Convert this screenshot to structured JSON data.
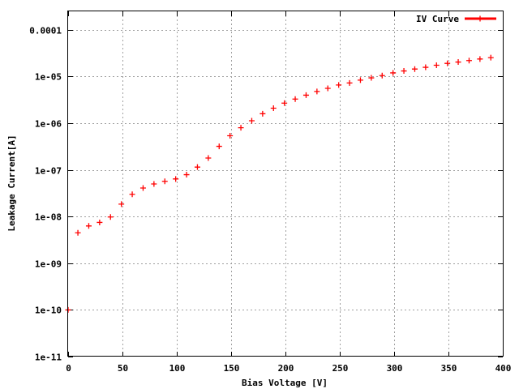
{
  "colors": {
    "series": "#ff0000",
    "axis": "#000000",
    "grid": "#a0a0a0"
  },
  "chart_data": {
    "type": "scatter",
    "title": "",
    "xlabel": "Bias Voltage [V]",
    "ylabel": "Leakage Current[A]",
    "xlim": [
      0,
      400
    ],
    "ylim": [
      1e-11,
      0.00025
    ],
    "y_scale": "log",
    "grid": true,
    "legend_position": "top-right",
    "x_ticks": [
      0,
      50,
      100,
      150,
      200,
      250,
      300,
      350,
      400
    ],
    "x_tick_labels": [
      "0",
      "50",
      "100",
      "150",
      "200",
      "250",
      "300",
      "350",
      "400"
    ],
    "y_ticks": [
      1e-11,
      1e-10,
      1e-09,
      1e-08,
      1e-07,
      1e-06,
      1e-05,
      0.0001
    ],
    "y_tick_labels": [
      "1e-11",
      "1e-10",
      "1e-09",
      "1e-08",
      "1e-07",
      "1e-06",
      "1e-05",
      "0.0001"
    ],
    "series": [
      {
        "name": "IV Curve",
        "x": [
          0,
          9,
          19,
          29,
          39,
          49,
          59,
          69,
          79,
          89,
          99,
          109,
          119,
          129,
          139,
          149,
          159,
          169,
          179,
          189,
          199,
          209,
          219,
          229,
          239,
          249,
          259,
          269,
          279,
          289,
          299,
          309,
          319,
          329,
          339,
          349,
          359,
          369,
          379,
          389
        ],
        "y": [
          1e-10,
          4.5e-09,
          6.3e-09,
          7.5e-09,
          9.8e-09,
          1.85e-08,
          3e-08,
          4.1e-08,
          5e-08,
          5.7e-08,
          6.4e-08,
          7.9e-08,
          1.15e-07,
          1.8e-07,
          3.2e-07,
          5.4e-07,
          8e-07,
          1.13e-06,
          1.6e-06,
          2.1e-06,
          2.7e-06,
          3.3e-06,
          4e-06,
          4.8e-06,
          5.6e-06,
          6.6e-06,
          7.3e-06,
          8.4e-06,
          9.4e-06,
          1.05e-05,
          1.2e-05,
          1.32e-05,
          1.45e-05,
          1.58e-05,
          1.75e-05,
          1.92e-05,
          2.05e-05,
          2.2e-05,
          2.38e-05,
          2.55e-05
        ]
      }
    ]
  }
}
